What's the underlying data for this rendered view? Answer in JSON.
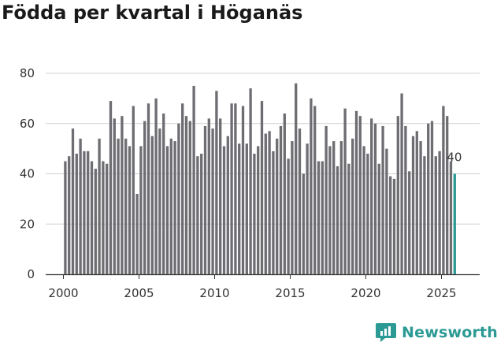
{
  "title": "Födda per kvartal i Höganäs",
  "brand": {
    "name": "Newsworthy",
    "color": "#2c9a94"
  },
  "colors": {
    "bar": "#6d6d72",
    "highlight": "#2c9a94",
    "grid": "#d0d0d0"
  },
  "chart_data": {
    "type": "bar",
    "title": "Födda per kvartal i Höganäs",
    "xlabel": "",
    "ylabel": "",
    "ylim": [
      0,
      80
    ],
    "yticks": [
      0,
      20,
      40,
      60,
      80
    ],
    "xticks": [
      2000,
      2005,
      2010,
      2015,
      2020,
      2025
    ],
    "x_start": 2000,
    "highlight_last": true,
    "annotation": {
      "label": "40",
      "value": 40,
      "target": "last_bar"
    },
    "values": [
      45,
      47,
      58,
      48,
      54,
      49,
      49,
      45,
      42,
      54,
      45,
      44,
      69,
      62,
      54,
      63,
      54,
      51,
      67,
      32,
      51,
      61,
      68,
      55,
      70,
      58,
      64,
      51,
      54,
      53,
      60,
      68,
      63,
      61,
      75,
      47,
      48,
      59,
      62,
      58,
      73,
      62,
      51,
      55,
      68,
      68,
      52,
      67,
      52,
      74,
      48,
      51,
      69,
      56,
      57,
      49,
      54,
      59,
      64,
      46,
      53,
      76,
      58,
      40,
      52,
      70,
      67,
      45,
      45,
      59,
      51,
      53,
      43,
      53,
      66,
      44,
      54,
      65,
      63,
      51,
      48,
      62,
      60,
      44,
      59,
      50,
      39,
      38,
      63,
      72,
      59,
      41,
      55,
      57,
      53,
      47,
      60,
      61,
      47,
      49,
      67,
      63,
      45,
      40
    ]
  }
}
